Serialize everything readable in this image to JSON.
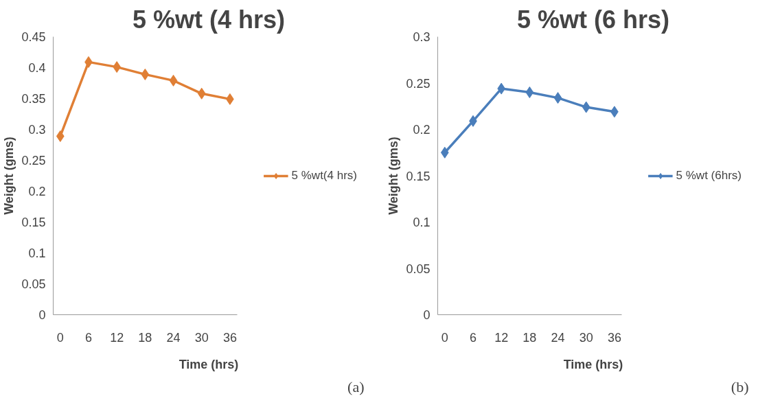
{
  "chart_data": [
    {
      "type": "line",
      "title": "5 %wt (4 hrs)",
      "xlabel": "Time (hrs)",
      "ylabel": "Weight (gms)",
      "categories": [
        "0",
        "6",
        "12",
        "18",
        "24",
        "30",
        "36"
      ],
      "series": [
        {
          "name": "5 %wt(4 hrs)",
          "color": "#e07f35",
          "values": [
            0.289,
            0.409,
            0.401,
            0.389,
            0.379,
            0.358,
            0.349
          ]
        }
      ],
      "ylim": [
        0,
        0.45
      ],
      "yticks": [
        0,
        0.05,
        0.1,
        0.15,
        0.2,
        0.25,
        0.3,
        0.35,
        0.4,
        0.45
      ],
      "grid": false,
      "legend": "right",
      "marker": "diamond",
      "line_style": "solid",
      "annotations": [
        "(a)"
      ]
    },
    {
      "type": "line",
      "title": "5 %wt (6 hrs)",
      "xlabel": "Time (hrs)",
      "ylabel": "Weight (gms)",
      "categories": [
        "0",
        "6",
        "12",
        "18",
        "24",
        "30",
        "36"
      ],
      "series": [
        {
          "name": "5 %wt (6hrs)",
          "color": "#4a7ebb",
          "values": [
            0.175,
            0.209,
            0.244,
            0.24,
            0.234,
            0.224,
            0.219
          ]
        }
      ],
      "ylim": [
        0,
        0.3
      ],
      "yticks": [
        0,
        0.05,
        0.1,
        0.15,
        0.2,
        0.25,
        0.3
      ],
      "grid": false,
      "legend": "right",
      "marker": "diamond",
      "line_style": "solid",
      "annotations": [
        "(b)"
      ]
    }
  ]
}
